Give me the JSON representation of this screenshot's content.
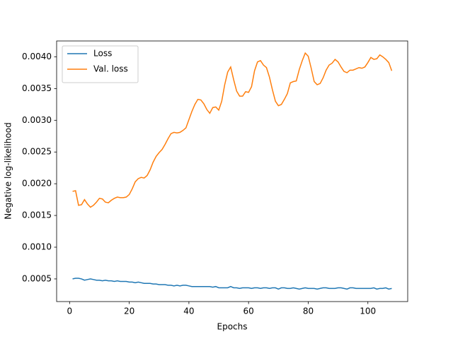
{
  "chart_data": {
    "type": "line",
    "xlabel": "Epochs",
    "ylabel": "Negative log-likelihood",
    "x": [
      1,
      2,
      3,
      4,
      5,
      6,
      7,
      8,
      9,
      10,
      11,
      12,
      13,
      14,
      15,
      16,
      17,
      18,
      19,
      20,
      21,
      22,
      23,
      24,
      25,
      26,
      27,
      28,
      29,
      30,
      31,
      32,
      33,
      34,
      35,
      36,
      37,
      38,
      39,
      40,
      41,
      42,
      43,
      44,
      45,
      46,
      47,
      48,
      49,
      50,
      51,
      52,
      53,
      54,
      55,
      56,
      57,
      58,
      59,
      60,
      61,
      62,
      63,
      64,
      65,
      66,
      67,
      68,
      69,
      70,
      71,
      72,
      73,
      74,
      75,
      76,
      77,
      78,
      79,
      80,
      81,
      82,
      83,
      84,
      85,
      86,
      87,
      88,
      89,
      90,
      91,
      92,
      93,
      94,
      95,
      96,
      97,
      98,
      99,
      100,
      101,
      102,
      103,
      104,
      105,
      106,
      107,
      108
    ],
    "series": [
      {
        "name": "Loss",
        "color": "#1f77b4",
        "values": [
          0.0005,
          0.00051,
          0.00051,
          0.0005,
          0.00048,
          0.00049,
          0.0005,
          0.00049,
          0.00048,
          0.00048,
          0.00047,
          0.00048,
          0.00047,
          0.00047,
          0.00046,
          0.00047,
          0.00046,
          0.00046,
          0.00046,
          0.00045,
          0.00045,
          0.00044,
          0.00045,
          0.00044,
          0.00043,
          0.00043,
          0.00043,
          0.00042,
          0.00042,
          0.00041,
          0.00041,
          0.00041,
          0.0004,
          0.0004,
          0.00039,
          0.0004,
          0.00039,
          0.0004,
          0.0004,
          0.00039,
          0.00038,
          0.00038,
          0.00038,
          0.00038,
          0.00038,
          0.00038,
          0.00038,
          0.00037,
          0.00038,
          0.00036,
          0.00036,
          0.00036,
          0.00036,
          0.00038,
          0.00036,
          0.00036,
          0.00035,
          0.00036,
          0.00036,
          0.00036,
          0.00035,
          0.00036,
          0.00036,
          0.00035,
          0.00036,
          0.00036,
          0.00035,
          0.00036,
          0.00036,
          0.00034,
          0.00036,
          0.00036,
          0.00035,
          0.00035,
          0.00036,
          0.00035,
          0.00034,
          0.00035,
          0.00036,
          0.00035,
          0.00035,
          0.00035,
          0.00034,
          0.00035,
          0.00036,
          0.00036,
          0.00035,
          0.00035,
          0.00035,
          0.00036,
          0.00036,
          0.00035,
          0.00034,
          0.00036,
          0.00036,
          0.00035,
          0.00035,
          0.00035,
          0.00035,
          0.00035,
          0.00035,
          0.00036,
          0.00034,
          0.00035,
          0.00035,
          0.00036,
          0.00034,
          0.00035
        ]
      },
      {
        "name": "Val. loss",
        "color": "#ff7f0e",
        "values": [
          0.00188,
          0.00189,
          0.00166,
          0.00167,
          0.00175,
          0.00168,
          0.00163,
          0.00166,
          0.00171,
          0.00177,
          0.00176,
          0.00171,
          0.0017,
          0.00174,
          0.00177,
          0.00179,
          0.00178,
          0.00178,
          0.00179,
          0.00183,
          0.00192,
          0.00203,
          0.00208,
          0.0021,
          0.00209,
          0.00213,
          0.00222,
          0.00234,
          0.00243,
          0.00249,
          0.00254,
          0.00262,
          0.00271,
          0.00279,
          0.00281,
          0.0028,
          0.00281,
          0.00284,
          0.00288,
          0.00301,
          0.00314,
          0.00325,
          0.00333,
          0.00332,
          0.00326,
          0.00317,
          0.00311,
          0.0032,
          0.00321,
          0.00316,
          0.0033,
          0.00356,
          0.00376,
          0.00384,
          0.00364,
          0.00346,
          0.00338,
          0.00338,
          0.00345,
          0.00344,
          0.00353,
          0.00378,
          0.00392,
          0.00394,
          0.00387,
          0.00383,
          0.00368,
          0.00348,
          0.0033,
          0.00323,
          0.00325,
          0.00333,
          0.00342,
          0.00359,
          0.00361,
          0.00362,
          0.0038,
          0.00394,
          0.00406,
          0.00401,
          0.00382,
          0.00361,
          0.00356,
          0.00358,
          0.00367,
          0.00379,
          0.00387,
          0.0039,
          0.00396,
          0.00392,
          0.00384,
          0.00377,
          0.00375,
          0.00379,
          0.00379,
          0.00381,
          0.00383,
          0.00382,
          0.00384,
          0.00391,
          0.00399,
          0.00396,
          0.00397,
          0.00403,
          0.004,
          0.00396,
          0.00391,
          0.00378
        ]
      }
    ],
    "xlim": [
      -4.35,
      113.35
    ],
    "xticks": [
      0,
      20,
      40,
      60,
      80,
      100
    ],
    "ylim": [
      0.000143,
      0.00425
    ],
    "yticks": [
      {
        "value": 0.0005,
        "label": "0.0005"
      },
      {
        "value": 0.001,
        "label": "0.0010"
      },
      {
        "value": 0.0015,
        "label": "0.0015"
      },
      {
        "value": 0.002,
        "label": "0.0020"
      },
      {
        "value": 0.0025,
        "label": "0.0025"
      },
      {
        "value": 0.003,
        "label": "0.0030"
      },
      {
        "value": 0.0035,
        "label": "0.0035"
      },
      {
        "value": 0.004,
        "label": "0.0040"
      }
    ],
    "grid": false,
    "legend": "upper left"
  }
}
